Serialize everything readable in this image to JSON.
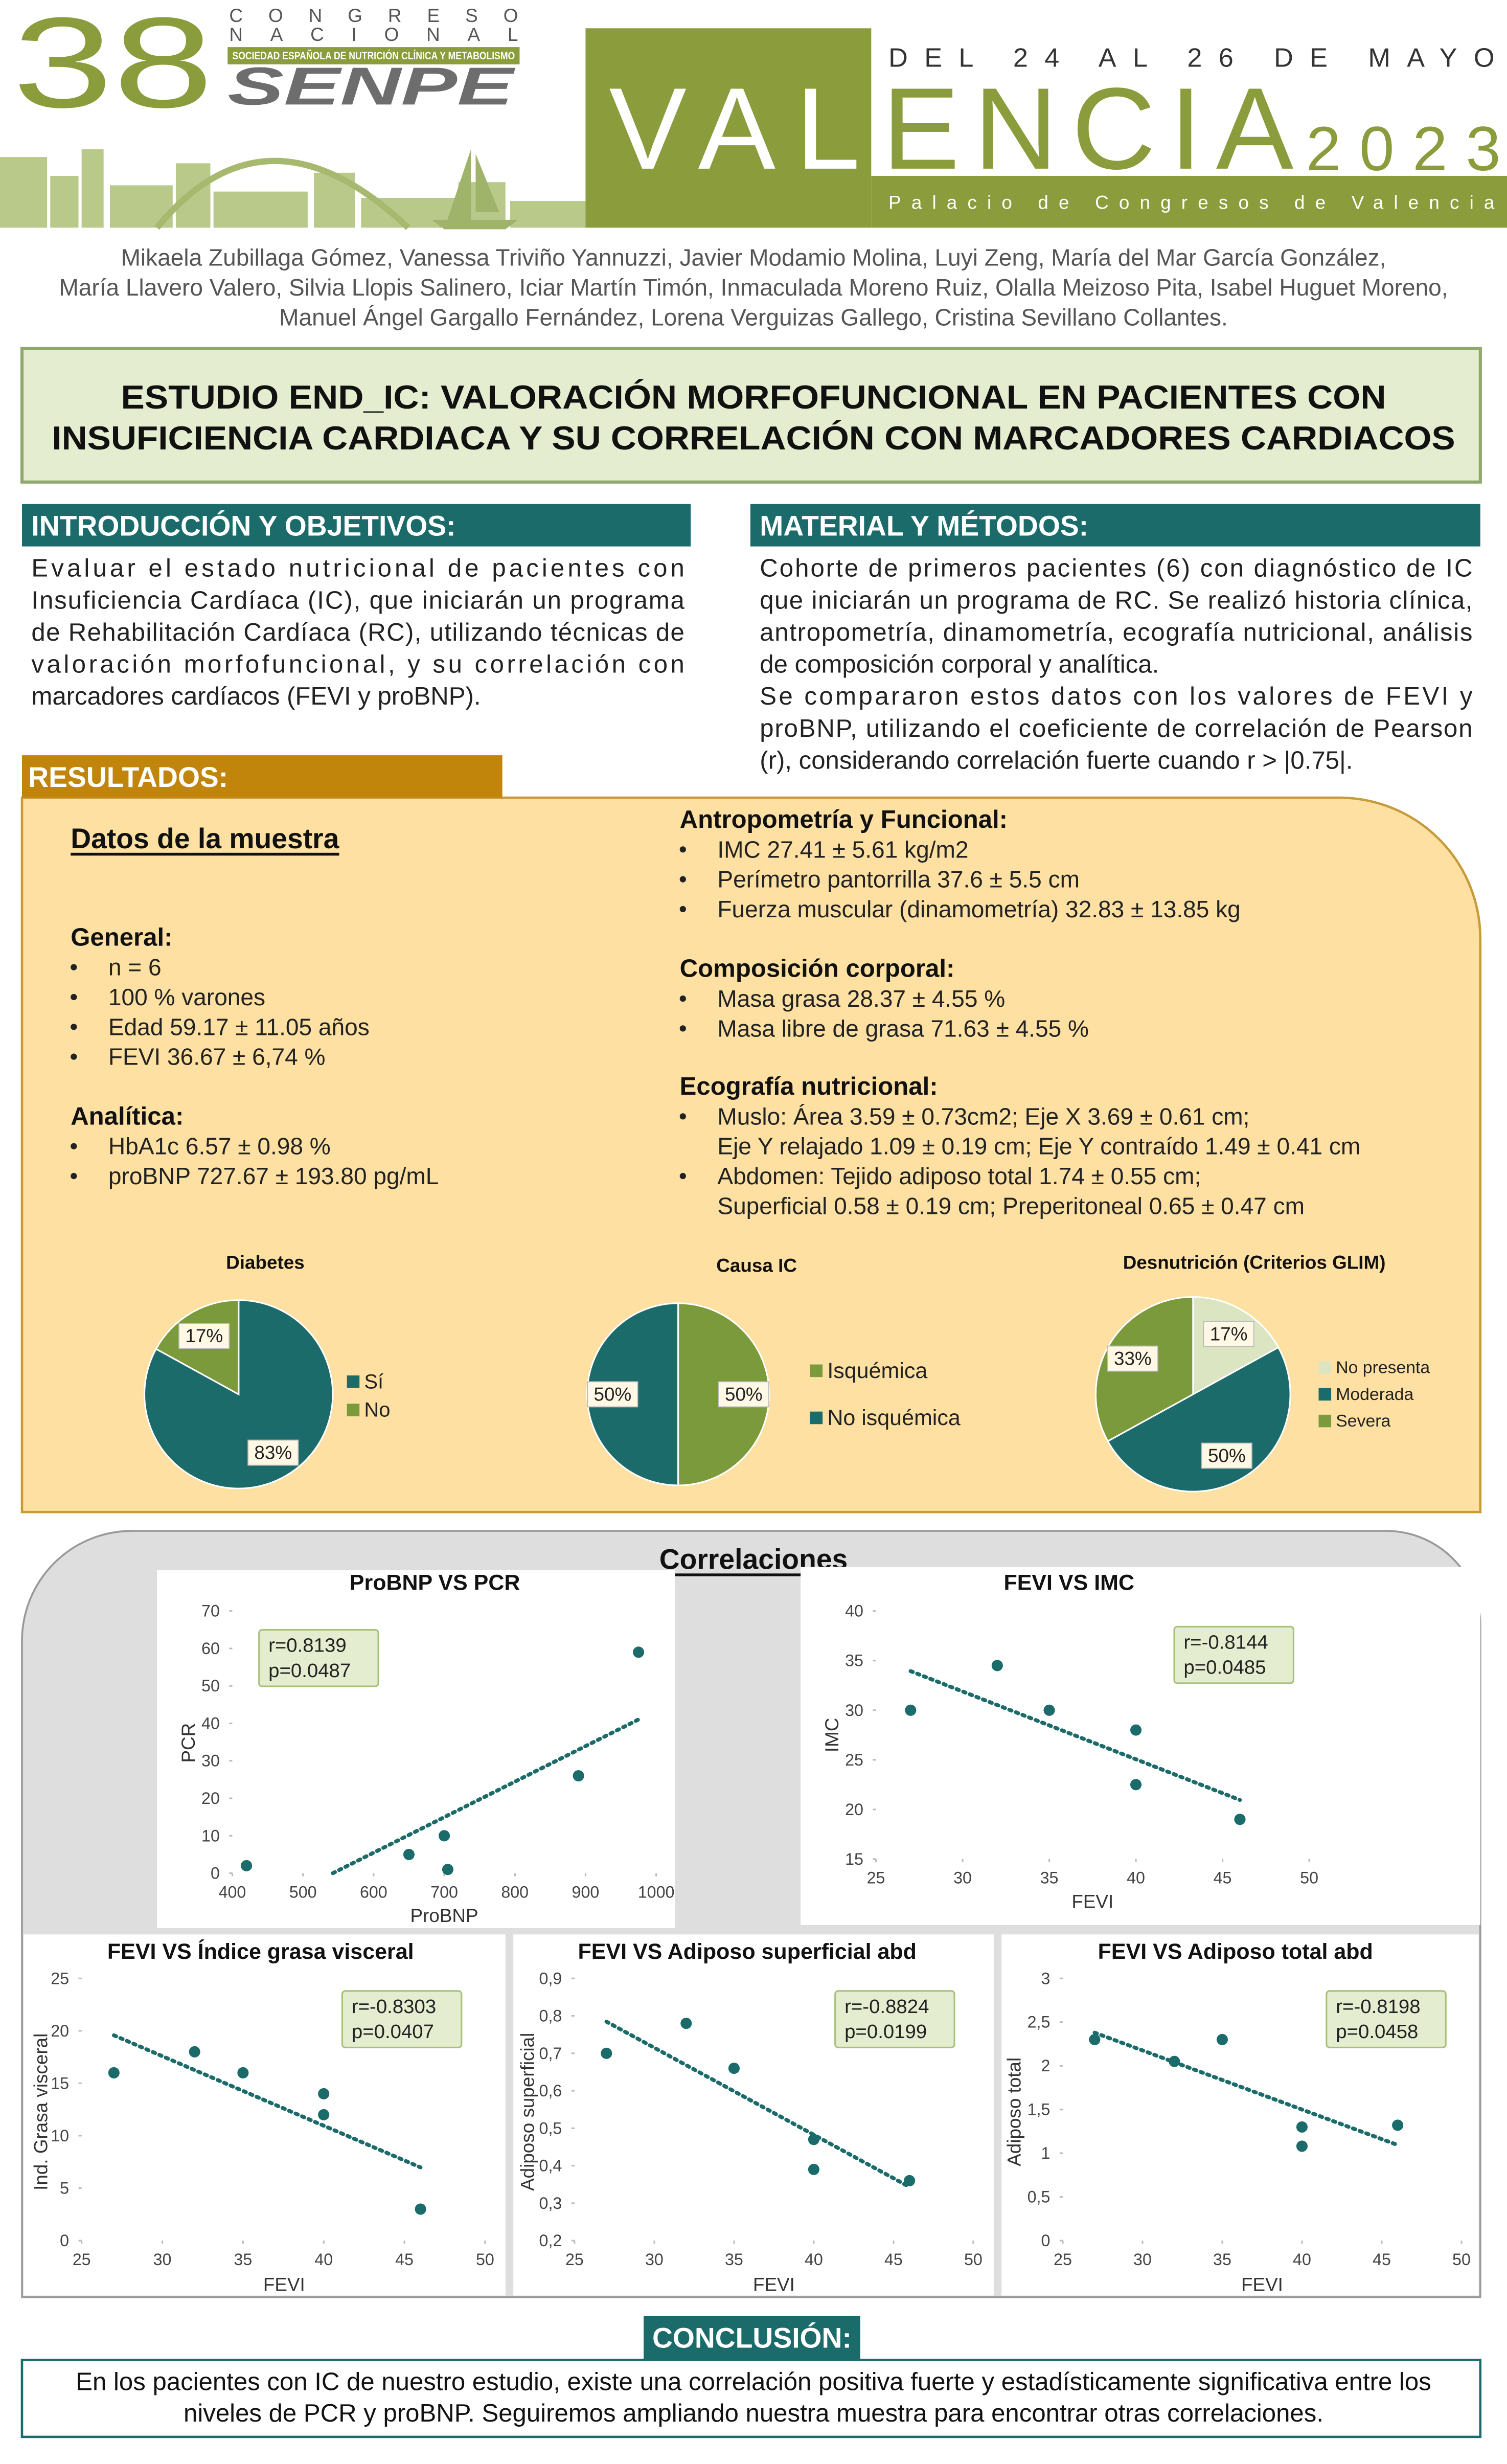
{
  "header": {
    "number": "38",
    "congress": "CONGRESO",
    "national": "NACIONAL",
    "society": "SOCIEDAD ESPAÑOLA DE NUTRICIÓN CLÍNICA Y METABOLISMO",
    "acronym": "SENPE",
    "dates": "DEL 24 AL 26 DE MAYO",
    "city": [
      "VAL",
      "ENCIA"
    ],
    "year": "2023",
    "venue": "Palacio de Congresos de Valencia"
  },
  "authors": [
    "Mikaela Zubillaga Gómez, Vanessa Triviño Yannuzzi, Javier Modamio Molina, Luyi Zeng, María del Mar García González,",
    "María Llavero Valero, Silvia Llopis Salinero, Iciar Martín Timón, Inmaculada Moreno Ruiz, Olalla Meizoso Pita, Isabel Huguet Moreno,",
    "Manuel Ángel Gargallo Fernández, Lorena Verguizas Gallego, Cristina Sevillano Collantes."
  ],
  "title": [
    "ESTUDIO END_IC: VALORACIÓN MORFOFUNCIONAL EN PACIENTES CON",
    "INSUFICIENCIA CARDIACA Y SU CORRELACIÓN CON MARCADORES CARDIACOS"
  ],
  "introduction": {
    "heading": "INTRODUCCIÓN Y OBJETIVOS:",
    "lines": [
      "Evaluar el estado nutricional de pacientes con",
      "Insuficiencia Cardíaca (IC), que iniciarán un programa",
      "de Rehabilitación Cardíaca (RC), utilizando técnicas de",
      "valoración morfofuncional, y su correlación con",
      "marcadores cardíacos (FEVI y proBNP)."
    ]
  },
  "methods": {
    "heading": "MATERIAL Y MÉTODOS:",
    "lines": [
      "Cohorte de primeros pacientes (6) con diagnóstico de IC",
      "que iniciarán un programa de RC. Se realizó historia clínica,",
      "antropometría, dinamometría, ecografía nutricional, análisis",
      "de composición corporal y analítica.",
      "Se compararon estos datos con los valores de FEVI y",
      "proBNP, utilizando el coeficiente de correlación de Pearson",
      "(r), considerando correlación fuerte cuando r > |0.75|."
    ]
  },
  "results": {
    "heading": "RESULTADOS:",
    "sample_title": "Datos de la muestra",
    "sections": [
      {
        "heading": "General:",
        "items": [
          [
            "n = 6"
          ],
          [
            "100 % varones"
          ],
          [
            "Edad 59.17 ± 11.05 años"
          ],
          [
            "FEVI 36.67 ± 6,74 %"
          ]
        ]
      },
      {
        "heading": "Analítica:",
        "items": [
          [
            "HbA1c 6.57 ± 0.98 %"
          ],
          [
            "proBNP 727.67 ± 193.80 pg/mL"
          ]
        ]
      },
      {
        "heading": "Antropometría y Funcional:",
        "items": [
          [
            "IMC 27.41 ± 5.61 kg/m2"
          ],
          [
            "Perímetro pantorrilla 37.6 ± 5.5 cm"
          ],
          [
            "Fuerza muscular (dinamometría) 32.83 ± 13.85 kg"
          ]
        ]
      },
      {
        "heading": "Composición corporal:",
        "items": [
          [
            "Masa grasa 28.37 ± 4.55 %"
          ],
          [
            "Masa libre de grasa 71.63 ± 4.55 %"
          ]
        ]
      },
      {
        "heading": "Ecografía nutricional:",
        "items": [
          [
            "Muslo: Área 3.59 ± 0.73cm2; Eje X 3.69 ± 0.61 cm;",
            "Eje Y relajado 1.09 ± 0.19 cm; Eje Y contraído 1.49 ± 0.41 cm"
          ],
          [
            "Abdomen: Tejido adiposo total 1.74 ± 0.55 cm;",
            "Superficial 0.58 ± 0.19 cm; Preperitoneal 0.65 ± 0.47 cm"
          ]
        ]
      }
    ],
    "pies": [
      {
        "type": "pie",
        "title": "Diabetes",
        "categories": [
          "Sí",
          "No"
        ],
        "values": [
          83,
          17
        ],
        "value_labels": [
          "83%",
          "17%"
        ],
        "colors": [
          "#1c6b6b",
          "#7a9a3c"
        ]
      },
      {
        "type": "pie",
        "title": "Causa IC",
        "categories": [
          "Isquémica",
          "No isquémica"
        ],
        "values": [
          50,
          50
        ],
        "value_labels": [
          "50%",
          "50%"
        ],
        "colors": [
          "#7a9a3c",
          "#1c6b6b"
        ]
      },
      {
        "type": "pie",
        "title": "Desnutrición (Criterios GLIM)",
        "categories": [
          "No presenta",
          "Moderada",
          "Severa"
        ],
        "values": [
          17,
          50,
          33
        ],
        "value_labels": [
          "17%",
          "50%",
          "33%"
        ],
        "colors": [
          "#dbe5c2",
          "#1c6b6b",
          "#7a9a3c"
        ]
      }
    ]
  },
  "correlations": {
    "title": "Correlaciones",
    "charts": [
      {
        "type": "scatter",
        "title": "ProBNP VS PCR",
        "xlabel": "ProBNP",
        "ylabel": "PCR",
        "x": [
          420,
          650,
          700,
          705,
          890,
          975
        ],
        "y": [
          2,
          5,
          10,
          1,
          26,
          59
        ],
        "xlim": [
          400,
          1000
        ],
        "ylim": [
          0,
          70
        ],
        "xticks": [
          400,
          500,
          600,
          700,
          800,
          900,
          1000
        ],
        "yticks": [
          0,
          10,
          20,
          30,
          40,
          50,
          60,
          70
        ],
        "annotation": [
          "r=0.8139",
          "p=0.0487"
        ],
        "color": "#1c6b6b",
        "trendline": true
      },
      {
        "type": "scatter",
        "title": "FEVI VS IMC",
        "xlabel": "FEVI",
        "ylabel": "IMC",
        "x": [
          27,
          32,
          35,
          40,
          40,
          46
        ],
        "y": [
          30,
          34.5,
          30,
          28,
          22.5,
          19
        ],
        "xlim": [
          25,
          50
        ],
        "ylim": [
          15,
          40
        ],
        "xticks": [
          25,
          30,
          35,
          40,
          45,
          50
        ],
        "yticks": [
          15,
          20,
          25,
          30,
          35,
          40
        ],
        "annotation": [
          "r=-0.8144",
          "p=0.0485"
        ],
        "color": "#1c6b6b",
        "trendline": true
      },
      {
        "type": "scatter",
        "title": "FEVI VS Índice grasa visceral",
        "xlabel": "FEVI",
        "ylabel": "Ind. Grasa visceral",
        "x": [
          27,
          32,
          35,
          40,
          40,
          46
        ],
        "y": [
          16,
          18,
          16,
          14,
          12,
          3
        ],
        "xlim": [
          25,
          50
        ],
        "ylim": [
          0,
          25
        ],
        "xticks": [
          25,
          30,
          35,
          40,
          45,
          50
        ],
        "yticks": [
          0,
          5,
          10,
          15,
          20,
          25
        ],
        "annotation": [
          "r=-0.8303",
          "p=0.0407"
        ],
        "color": "#1c6b6b",
        "trendline": true
      },
      {
        "type": "scatter",
        "title": "FEVI VS Adiposo superficial abd",
        "xlabel": "FEVI",
        "ylabel": "Adiposo superficial",
        "x": [
          27,
          32,
          35,
          40,
          40,
          46
        ],
        "y": [
          0.7,
          0.78,
          0.66,
          0.47,
          0.39,
          0.36
        ],
        "xlim": [
          25,
          50
        ],
        "ylim": [
          0.2,
          0.9
        ],
        "xticks": [
          25,
          30,
          35,
          40,
          45,
          50
        ],
        "yticks": [
          {
            "value": 0.2,
            "label": "0,2"
          },
          {
            "value": 0.3,
            "label": "0,3"
          },
          {
            "value": 0.4,
            "label": "0,4"
          },
          {
            "value": 0.5,
            "label": "0,5"
          },
          {
            "value": 0.6,
            "label": "0,6"
          },
          {
            "value": 0.7,
            "label": "0,7"
          },
          {
            "value": 0.8,
            "label": "0,8"
          },
          {
            "value": 0.9,
            "label": "0,9"
          }
        ],
        "annotation": [
          "r=-0.8824",
          "p=0.0199"
        ],
        "color": "#1c6b6b",
        "trendline": true
      },
      {
        "type": "scatter",
        "title": "FEVI VS Adiposo total abd",
        "xlabel": "FEVI",
        "ylabel": "Adiposo total",
        "x": [
          27,
          32,
          35,
          40,
          40,
          46
        ],
        "y": [
          2.3,
          2.05,
          2.3,
          1.3,
          1.08,
          1.32
        ],
        "xlim": [
          25,
          50
        ],
        "ylim": [
          0,
          3
        ],
        "xticks": [
          25,
          30,
          35,
          40,
          45,
          50
        ],
        "yticks": [
          0,
          {
            "value": 0.5,
            "label": "0,5"
          },
          1,
          {
            "value": 1.5,
            "label": "1,5"
          },
          2,
          {
            "value": 2.5,
            "label": "2,5"
          },
          3
        ],
        "annotation": [
          "r=-0.8198",
          "p=0.0458"
        ],
        "color": "#1c6b6b",
        "trendline": true
      }
    ]
  },
  "conclusion": {
    "heading": "CONCLUSIÓN:",
    "lines": [
      "En los pacientes con IC de nuestro estudio, existe una correlación positiva fuerte y estadísticamente significativa entre los",
      "niveles de PCR y proBNP. Seguiremos ampliando nuestra muestra para encontrar otras correlaciones."
    ]
  }
}
